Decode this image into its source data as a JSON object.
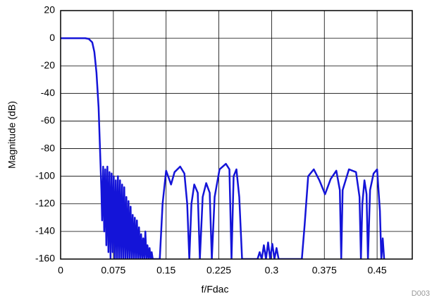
{
  "chart_data": {
    "type": "line",
    "x_label": "f/Fdac",
    "y_label": "Magnitude (dB)",
    "annotation": "D003",
    "xlim": [
      0,
      0.5
    ],
    "ylim": [
      -160,
      20
    ],
    "xticks": [
      0,
      0.075,
      0.15,
      0.225,
      0.3,
      0.375,
      0.45
    ],
    "yticks": [
      -160,
      -140,
      -120,
      -100,
      -80,
      -60,
      -40,
      -20,
      0,
      20
    ],
    "grid": true,
    "color": "#1414d8",
    "x": [
      0,
      0.02,
      0.035,
      0.04,
      0.045,
      0.048,
      0.051,
      0.054,
      0.056,
      0.058,
      0.059,
      0.0605,
      0.062,
      0.0635,
      0.065,
      0.0665,
      0.068,
      0.0695,
      0.071,
      0.0725,
      0.074,
      0.0755,
      0.077,
      0.0785,
      0.08,
      0.0815,
      0.083,
      0.0845,
      0.086,
      0.0875,
      0.089,
      0.0905,
      0.092,
      0.0935,
      0.095,
      0.0965,
      0.098,
      0.0995,
      0.101,
      0.1025,
      0.104,
      0.1055,
      0.107,
      0.1085,
      0.11,
      0.1115,
      0.113,
      0.1145,
      0.116,
      0.1175,
      0.119,
      0.1205,
      0.122,
      0.1235,
      0.125,
      0.1265,
      0.128,
      0.1295,
      0.131,
      0.141,
      0.145,
      0.15,
      0.155,
      0.157,
      0.162,
      0.17,
      0.176,
      0.18,
      0.183,
      0.186,
      0.19,
      0.195,
      0.198,
      0.202,
      0.207,
      0.212,
      0.215,
      0.219,
      0.226,
      0.235,
      0.24,
      0.243,
      0.246,
      0.25,
      0.254,
      0.258,
      0.265,
      0.28,
      0.283,
      0.286,
      0.289,
      0.292,
      0.295,
      0.298,
      0.301,
      0.304,
      0.307,
      0.31,
      0.34,
      0.343,
      0.347,
      0.352,
      0.36,
      0.368,
      0.376,
      0.384,
      0.392,
      0.397,
      0.399,
      0.401,
      0.41,
      0.42,
      0.425,
      0.427,
      0.429,
      0.432,
      0.435,
      0.437,
      0.44,
      0.445,
      0.45,
      0.454,
      0.456,
      0.458,
      0.46
    ],
    "values": [
      0,
      0,
      0,
      -0.5,
      -3,
      -10,
      -25,
      -50,
      -80,
      -110,
      -132,
      -93,
      -140,
      -95,
      -150,
      -93,
      -155,
      -97,
      -160,
      -98,
      -155,
      -100,
      -160,
      -103,
      -160,
      -100,
      -160,
      -103,
      -160,
      -106,
      -160,
      -108,
      -160,
      -115,
      -160,
      -118,
      -160,
      -122,
      -160,
      -128,
      -160,
      -130,
      -160,
      -132,
      -160,
      -137,
      -160,
      -142,
      -160,
      -145,
      -160,
      -140,
      -160,
      -150,
      -160,
      -152,
      -160,
      -155,
      -160,
      -160,
      -120,
      -96,
      -103,
      -106,
      -97,
      -93,
      -98,
      -120,
      -160,
      -120,
      -106,
      -112,
      -160,
      -115,
      -105,
      -112,
      -160,
      -115,
      -95,
      -91,
      -95,
      -160,
      -100,
      -95,
      -115,
      -160,
      -160,
      -160,
      -155,
      -160,
      -150,
      -160,
      -148,
      -160,
      -149,
      -160,
      -152,
      -160,
      -160,
      -160,
      -135,
      -100,
      -95,
      -103,
      -113,
      -102,
      -96,
      -110,
      -160,
      -110,
      -95,
      -97,
      -115,
      -160,
      -120,
      -103,
      -113,
      -160,
      -110,
      -98,
      -95,
      -125,
      -160,
      -145,
      -160
    ]
  }
}
